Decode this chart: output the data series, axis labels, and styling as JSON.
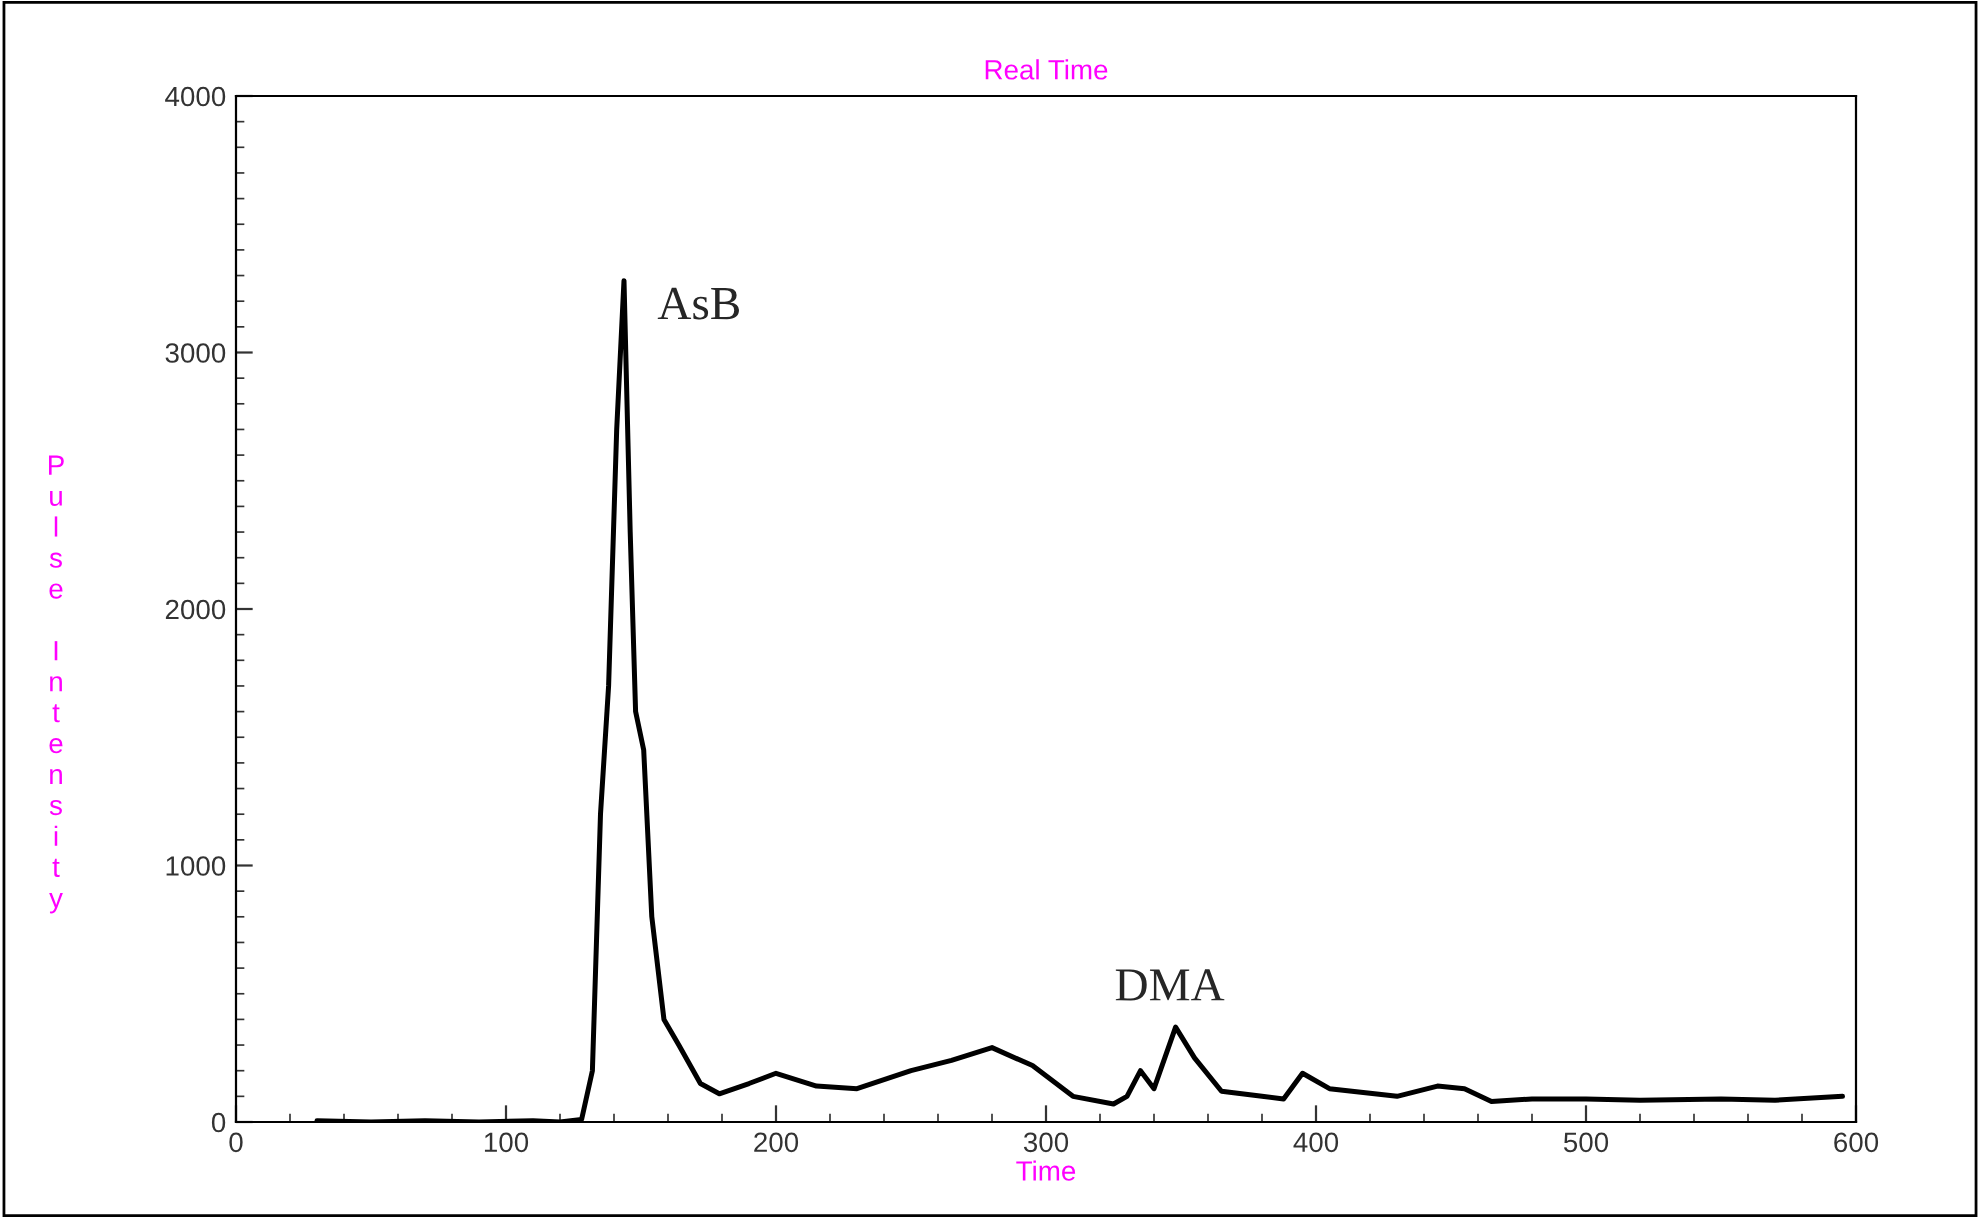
{
  "chart_data": {
    "type": "line",
    "title": "Real Time",
    "xlabel": "Time",
    "ylabel": "Pulse Intensity",
    "series": [
      {
        "color": "#000000",
        "x": [
          30,
          50,
          70,
          90,
          110,
          120,
          128,
          132,
          135,
          138,
          141,
          143.7,
          146,
          148,
          151,
          154,
          158.5,
          164,
          172,
          179,
          190,
          200,
          215,
          230,
          250,
          265,
          280,
          295,
          310,
          325,
          330,
          335,
          340,
          348,
          355,
          365,
          380,
          388,
          395,
          405,
          430,
          445,
          455,
          465,
          480,
          500,
          520,
          550,
          570,
          595
        ],
        "values": [
          5,
          0,
          5,
          0,
          5,
          0,
          10,
          200,
          1200,
          1700,
          2700,
          3280,
          2300,
          1600,
          1450,
          800,
          400,
          300,
          150,
          110,
          150,
          190,
          140,
          130,
          200,
          240,
          290,
          220,
          100,
          70,
          100,
          200,
          130,
          370,
          250,
          120,
          100,
          90,
          190,
          130,
          100,
          140,
          130,
          80,
          90,
          90,
          85,
          90,
          85,
          100
        ]
      }
    ],
    "xlim": [
      0,
      600
    ],
    "ylim": [
      0,
      4000
    ],
    "xticks": [
      0,
      100,
      200,
      300,
      400,
      500,
      600
    ],
    "yticks": [
      0,
      1000,
      2000,
      3000,
      4000
    ],
    "grid": false,
    "legend": false,
    "marker": "none",
    "line_style": "solid",
    "annotations": [
      {
        "text": "AsB",
        "x": 143.7,
        "y": 3280
      },
      {
        "text": "DMA",
        "x": 348,
        "y": 370
      }
    ]
  }
}
